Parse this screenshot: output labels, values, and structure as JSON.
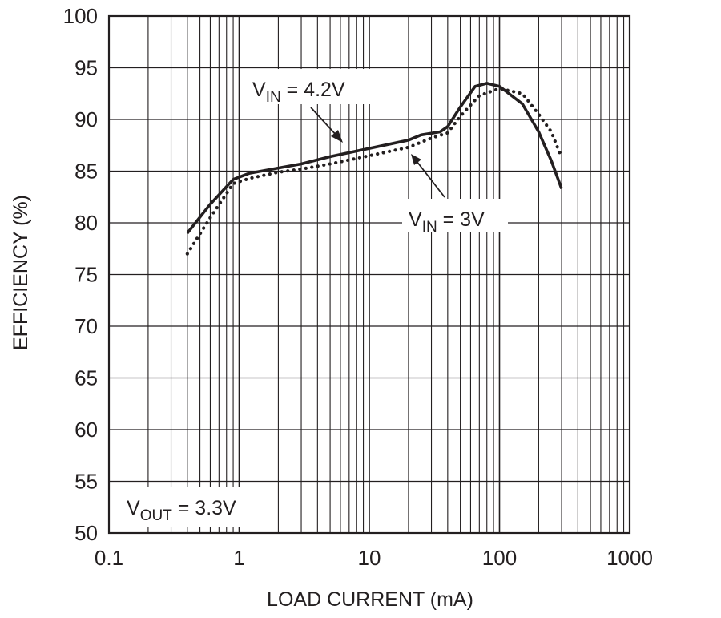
{
  "chart_data": {
    "type": "line",
    "xscale": "log",
    "xlim": [
      0.1,
      1000
    ],
    "ylim": [
      50,
      100
    ],
    "grid": true,
    "xlabel": "LOAD CURRENT (mA)",
    "ylabel": "EFFICIENCY (%)",
    "x_ticks": [
      "0.1",
      "1",
      "10",
      "100",
      "1000"
    ],
    "y_ticks": [
      "50",
      "55",
      "60",
      "65",
      "70",
      "75",
      "80",
      "85",
      "90",
      "95",
      "100"
    ],
    "series": [
      {
        "name": "VIN = 4.2V",
        "style": "solid",
        "color": "#231f20",
        "points": [
          [
            0.4,
            79
          ],
          [
            0.6,
            81.8
          ],
          [
            0.9,
            84.2
          ],
          [
            1.2,
            84.8
          ],
          [
            2,
            85.3
          ],
          [
            3,
            85.7
          ],
          [
            5,
            86.4
          ],
          [
            10,
            87.2
          ],
          [
            20,
            88
          ],
          [
            25,
            88.5
          ],
          [
            35,
            88.8
          ],
          [
            40,
            89.3
          ],
          [
            50,
            91.2
          ],
          [
            65,
            93.2
          ],
          [
            80,
            93.5
          ],
          [
            100,
            93.2
          ],
          [
            150,
            91.5
          ],
          [
            200,
            88.8
          ],
          [
            250,
            86
          ],
          [
            300,
            83.3
          ]
        ]
      },
      {
        "name": "VIN = 3V",
        "style": "dotted",
        "color": "#231f20",
        "points": [
          [
            0.4,
            77
          ],
          [
            0.6,
            80.5
          ],
          [
            0.9,
            83.8
          ],
          [
            1.2,
            84.3
          ],
          [
            2,
            84.9
          ],
          [
            3,
            85.2
          ],
          [
            5,
            85.7
          ],
          [
            10,
            86.5
          ],
          [
            20,
            87.3
          ],
          [
            30,
            88.2
          ],
          [
            40,
            88.7
          ],
          [
            50,
            90.3
          ],
          [
            70,
            92.3
          ],
          [
            100,
            93
          ],
          [
            150,
            92.5
          ],
          [
            200,
            90.5
          ],
          [
            250,
            88.8
          ],
          [
            300,
            86.3
          ]
        ]
      }
    ],
    "annotations": [
      {
        "main": "V",
        "sub": "IN",
        "rest": " = 4.2V"
      },
      {
        "main": "V",
        "sub": "IN",
        "rest": " = 3V"
      },
      {
        "main": "V",
        "sub": "OUT",
        "rest": " = 3.3V"
      }
    ]
  }
}
